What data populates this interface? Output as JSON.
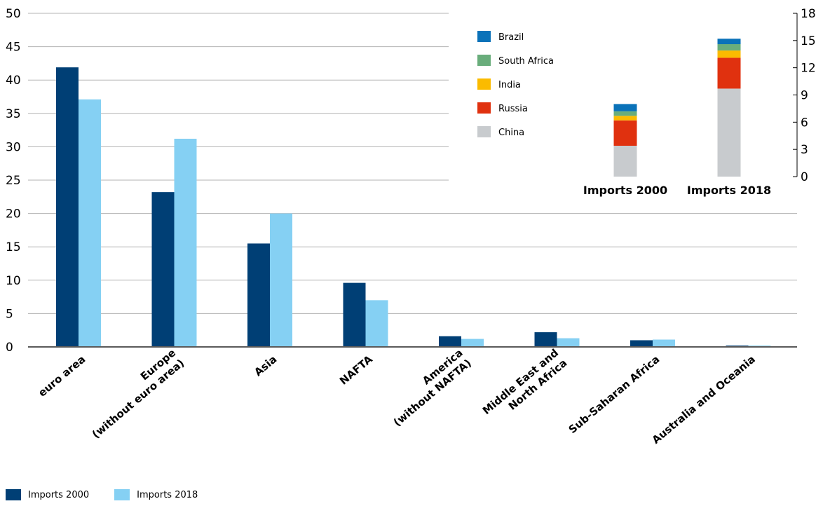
{
  "chart_data": [
    {
      "type": "bar",
      "categories": [
        [
          "euro area"
        ],
        [
          "Europe",
          "(without euro area)"
        ],
        [
          "Asia"
        ],
        [
          "NAFTA"
        ],
        [
          "America",
          "(without NAFTA)"
        ],
        [
          "Middle East and",
          "North Africa"
        ],
        [
          "Sub-Saharan Africa"
        ],
        [
          "Australia and Oceania"
        ]
      ],
      "series": [
        {
          "name": "Imports 2000",
          "color": "#003f75",
          "values": [
            41.9,
            23.2,
            15.5,
            9.6,
            1.6,
            2.2,
            1.0,
            0.2
          ]
        },
        {
          "name": "Imports 2018",
          "color": "#85d0f3",
          "values": [
            37.1,
            31.2,
            20.0,
            7.0,
            1.2,
            1.3,
            1.1,
            0.2
          ]
        }
      ],
      "ylim": [
        0,
        50
      ],
      "yticks": [
        0,
        5,
        10,
        15,
        20,
        25,
        30,
        35,
        40,
        45,
        50
      ],
      "grid": true,
      "legend_position": "bottom-left"
    },
    {
      "type": "bar",
      "stacked": true,
      "categories": [
        "Imports 2000",
        "Imports 2018"
      ],
      "series": [
        {
          "name": "China",
          "color": "#c8cbce",
          "values": [
            3.4,
            9.7
          ]
        },
        {
          "name": "Russia",
          "color": "#e0310f",
          "values": [
            2.8,
            3.4
          ]
        },
        {
          "name": "India",
          "color": "#fbbb00",
          "values": [
            0.5,
            0.8
          ]
        },
        {
          "name": "South Africa",
          "color": "#69ad7b",
          "values": [
            0.5,
            0.7
          ]
        },
        {
          "name": "Brazil",
          "color": "#0a72b9",
          "values": [
            0.8,
            0.6
          ]
        }
      ],
      "ylim": [
        0,
        18
      ],
      "yticks": [
        0,
        3,
        6,
        9,
        12,
        15,
        18
      ],
      "y_axis_side": "right",
      "grid": false,
      "legend_position": "left"
    }
  ]
}
